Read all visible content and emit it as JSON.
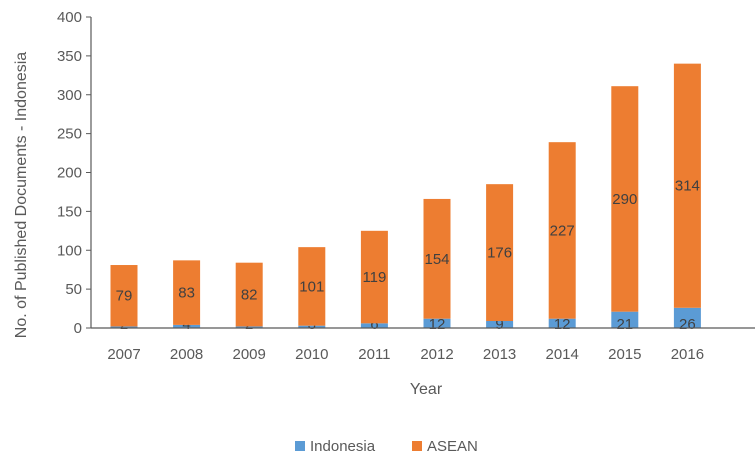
{
  "chart_data": {
    "type": "bar",
    "stacked": true,
    "categories": [
      "2007",
      "2008",
      "2009",
      "2010",
      "2011",
      "2012",
      "2013",
      "2014",
      "2015",
      "2016"
    ],
    "series": [
      {
        "name": "Indonesia",
        "color": "#5b9bd5",
        "values": [
          2,
          4,
          2,
          3,
          6,
          12,
          9,
          12,
          21,
          26
        ]
      },
      {
        "name": "ASEAN",
        "color": "#ed7d31",
        "values": [
          79,
          83,
          82,
          101,
          119,
          154,
          176,
          227,
          290,
          314
        ]
      }
    ],
    "title": "",
    "xlabel": "Year",
    "ylabel": "No. of Published Documents - Indonesia",
    "ylim": [
      0,
      400
    ],
    "yticks": [
      0,
      50,
      100,
      150,
      200,
      250,
      300,
      350,
      400
    ],
    "grid": false,
    "legend": "bottom"
  }
}
